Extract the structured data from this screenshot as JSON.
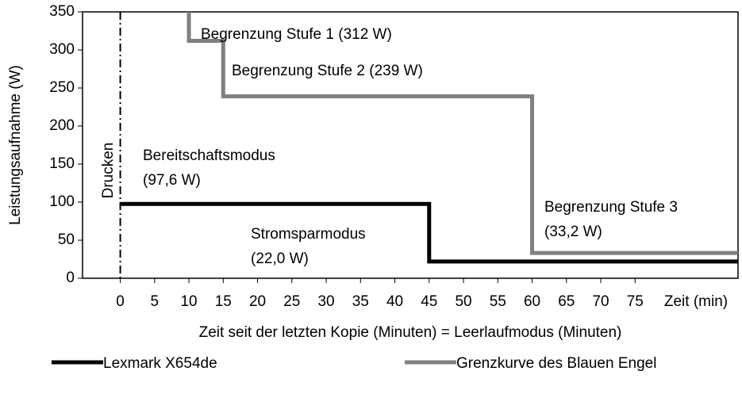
{
  "chart_data": {
    "type": "line",
    "y_label": "Leistungsaufnahme (W)",
    "x_label": "Zeit seit der letzten Kopie (Minuten) = Leerlaufmodus (Minuten)",
    "x_unit_label": "Zeit (min)",
    "xlim": [
      -5.5,
      90
    ],
    "xticks": [
      0,
      5,
      10,
      15,
      20,
      25,
      30,
      35,
      40,
      45,
      50,
      55,
      60,
      65,
      70,
      75
    ],
    "ylim": [
      0,
      350
    ],
    "yticks": [
      0,
      50,
      100,
      150,
      200,
      250,
      300,
      350
    ],
    "series": [
      {
        "name": "Lexmark X654de",
        "color": "#000000",
        "x": [
          0,
          45,
          45,
          90
        ],
        "values": [
          97.6,
          97.6,
          22.0,
          22.0
        ]
      },
      {
        "name": "Grenzkurve des Blauen Engel",
        "color": "#808080",
        "x": [
          10,
          10,
          15,
          15,
          60,
          60,
          90
        ],
        "values": [
          350,
          312,
          312,
          239,
          239,
          33.2,
          33.2
        ]
      }
    ],
    "annotations": [
      {
        "lines": [
          "Begrenzung Stufe 1 (312 W)"
        ]
      },
      {
        "lines": [
          "Begrenzung Stufe 2 (239 W)"
        ]
      },
      {
        "lines": [
          "Bereitschaftsmodus",
          "(97,6 W)"
        ]
      },
      {
        "lines": [
          "Stromsparmodus",
          "(22,0 W)"
        ]
      },
      {
        "lines": [
          "Begrenzung Stufe 3",
          "(33,2 W)"
        ]
      },
      {
        "lines": [
          "Drucken"
        ]
      }
    ]
  }
}
